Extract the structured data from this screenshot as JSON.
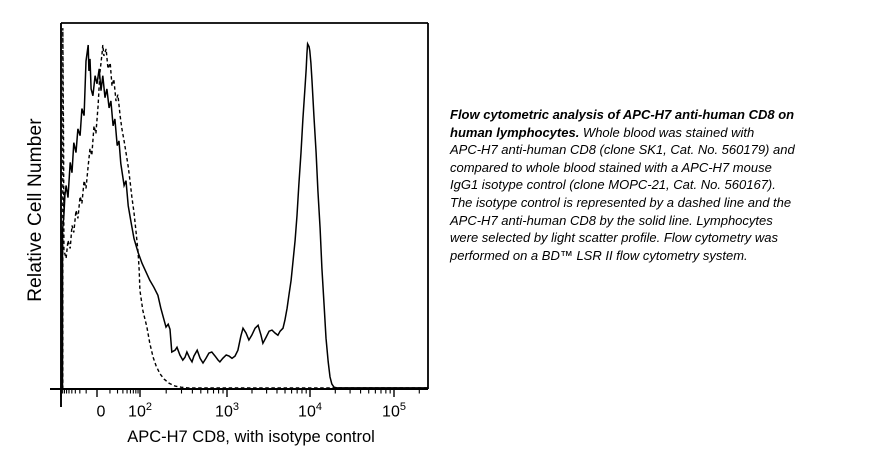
{
  "colors": {
    "line": "#000000",
    "background": "#ffffff"
  },
  "chart_data": {
    "type": "line",
    "subtype": "flow-cytometry-histogram-overlay",
    "title": "",
    "xlabel": "APC-H7 CD8, with isotype control",
    "ylabel": "Relative Cell Number",
    "x_scale": "biexponential",
    "grid": false,
    "legend": "none (line styles described in caption)",
    "x_axis": {
      "label": "APC-H7 CD8, with isotype control",
      "tick_labels": [
        {
          "base": "0",
          "exp": "",
          "fx": 0.109
        },
        {
          "base": "10",
          "exp": "2",
          "fx": 0.215
        },
        {
          "base": "10",
          "exp": "3",
          "fx": 0.452
        },
        {
          "base": "10",
          "exp": "4",
          "fx": 0.678
        },
        {
          "base": "10",
          "exp": "5",
          "fx": 0.907
        }
      ]
    },
    "y_axis": {
      "label": "Relative Cell Number",
      "tick_labels": []
    },
    "series": [
      {
        "name": "APC-H7 anti-human CD8 (clone SK1)",
        "style": "solid",
        "points": [
          [
            0.004,
            0
          ],
          [
            0.004,
            43.3
          ],
          [
            0.008,
            47.4
          ],
          [
            0.011,
            53.4
          ],
          [
            0.008,
            50.7
          ],
          [
            0.014,
            55.6
          ],
          [
            0.019,
            52.3
          ],
          [
            0.025,
            61.9
          ],
          [
            0.03,
            59.1
          ],
          [
            0.035,
            67.3
          ],
          [
            0.041,
            64.6
          ],
          [
            0.046,
            71.1
          ],
          [
            0.052,
            69.2
          ],
          [
            0.057,
            76.6
          ],
          [
            0.063,
            74.7
          ],
          [
            0.068,
            89.6
          ],
          [
            0.074,
            94.0
          ],
          [
            0.076,
            86.9
          ],
          [
            0.079,
            90.2
          ],
          [
            0.082,
            82.0
          ],
          [
            0.087,
            80.1
          ],
          [
            0.093,
            85.6
          ],
          [
            0.098,
            83.4
          ],
          [
            0.104,
            87.5
          ],
          [
            0.109,
            81.5
          ],
          [
            0.114,
            85.6
          ],
          [
            0.12,
            79.6
          ],
          [
            0.125,
            82.0
          ],
          [
            0.131,
            76.8
          ],
          [
            0.136,
            78.7
          ],
          [
            0.142,
            71.9
          ],
          [
            0.147,
            73.8
          ],
          [
            0.153,
            66.5
          ],
          [
            0.158,
            67.8
          ],
          [
            0.163,
            61.6
          ],
          [
            0.172,
            55.6
          ],
          [
            0.177,
            56.9
          ],
          [
            0.183,
            50.1
          ],
          [
            0.191,
            45.5
          ],
          [
            0.199,
            41.1
          ],
          [
            0.21,
            37.3
          ],
          [
            0.221,
            34.3
          ],
          [
            0.232,
            31.9
          ],
          [
            0.242,
            29.7
          ],
          [
            0.253,
            27.8
          ],
          [
            0.264,
            25.6
          ],
          [
            0.272,
            22.1
          ],
          [
            0.281,
            18.8
          ],
          [
            0.286,
            16.9
          ],
          [
            0.292,
            17.7
          ],
          [
            0.297,
            16.3
          ],
          [
            0.302,
            10.1
          ],
          [
            0.311,
            10.6
          ],
          [
            0.316,
            11.4
          ],
          [
            0.324,
            9.3
          ],
          [
            0.332,
            7.9
          ],
          [
            0.338,
            8.7
          ],
          [
            0.343,
            10.1
          ],
          [
            0.351,
            8.4
          ],
          [
            0.357,
            7.4
          ],
          [
            0.362,
            9.0
          ],
          [
            0.371,
            10.6
          ],
          [
            0.379,
            8.4
          ],
          [
            0.387,
            7.1
          ],
          [
            0.395,
            8.4
          ],
          [
            0.403,
            9.8
          ],
          [
            0.411,
            10.1
          ],
          [
            0.42,
            9.0
          ],
          [
            0.428,
            7.9
          ],
          [
            0.433,
            7.4
          ],
          [
            0.441,
            8.4
          ],
          [
            0.45,
            9.3
          ],
          [
            0.458,
            9.0
          ],
          [
            0.466,
            8.4
          ],
          [
            0.474,
            9.0
          ],
          [
            0.482,
            10.6
          ],
          [
            0.49,
            14.4
          ],
          [
            0.496,
            16.6
          ],
          [
            0.504,
            15.3
          ],
          [
            0.512,
            13.4
          ],
          [
            0.52,
            14.7
          ],
          [
            0.529,
            16.6
          ],
          [
            0.537,
            17.4
          ],
          [
            0.545,
            14.7
          ],
          [
            0.55,
            12.5
          ],
          [
            0.559,
            14.2
          ],
          [
            0.567,
            15.8
          ],
          [
            0.575,
            16.1
          ],
          [
            0.583,
            15.3
          ],
          [
            0.591,
            14.7
          ],
          [
            0.597,
            15.8
          ],
          [
            0.605,
            16.6
          ],
          [
            0.61,
            18.8
          ],
          [
            0.616,
            22.1
          ],
          [
            0.621,
            25.6
          ],
          [
            0.627,
            29.7
          ],
          [
            0.632,
            34.6
          ],
          [
            0.638,
            40.6
          ],
          [
            0.643,
            47.4
          ],
          [
            0.648,
            55.6
          ],
          [
            0.654,
            64.6
          ],
          [
            0.659,
            73.8
          ],
          [
            0.665,
            82.8
          ],
          [
            0.668,
            87.5
          ],
          [
            0.67,
            91.5
          ],
          [
            0.672,
            94.3
          ],
          [
            0.676,
            93.5
          ],
          [
            0.678,
            92.4
          ],
          [
            0.681,
            89.1
          ],
          [
            0.684,
            84.2
          ],
          [
            0.689,
            74.7
          ],
          [
            0.695,
            64.6
          ],
          [
            0.7,
            54.2
          ],
          [
            0.706,
            43.9
          ],
          [
            0.711,
            33.0
          ],
          [
            0.717,
            22.9
          ],
          [
            0.722,
            13.9
          ],
          [
            0.728,
            7.4
          ],
          [
            0.733,
            3.3
          ],
          [
            0.738,
            1.4
          ],
          [
            0.744,
            0.5
          ],
          [
            0.752,
            0.3
          ],
          [
            1.0,
            0.3
          ]
        ]
      },
      {
        "name": "APC-H7 mouse IgG1 isotype control (clone MOPC-21)",
        "style": "dashed",
        "points": [
          [
            0.005,
            0
          ],
          [
            0.005,
            98.6
          ],
          [
            0.007,
            65.1
          ],
          [
            0.008,
            37.9
          ],
          [
            0.014,
            35.7
          ],
          [
            0.019,
            40.6
          ],
          [
            0.025,
            38.4
          ],
          [
            0.03,
            44.7
          ],
          [
            0.035,
            42.8
          ],
          [
            0.041,
            48.8
          ],
          [
            0.046,
            46.6
          ],
          [
            0.052,
            52.6
          ],
          [
            0.057,
            50.7
          ],
          [
            0.063,
            56.9
          ],
          [
            0.068,
            54.8
          ],
          [
            0.074,
            61.0
          ],
          [
            0.079,
            65.7
          ],
          [
            0.084,
            63.8
          ],
          [
            0.09,
            71.9
          ],
          [
            0.095,
            69.8
          ],
          [
            0.101,
            77.4
          ],
          [
            0.106,
            86.4
          ],
          [
            0.112,
            91.8
          ],
          [
            0.114,
            94.0
          ],
          [
            0.117,
            91.0
          ],
          [
            0.123,
            92.9
          ],
          [
            0.128,
            87.5
          ],
          [
            0.134,
            89.1
          ],
          [
            0.139,
            82.8
          ],
          [
            0.144,
            84.7
          ],
          [
            0.15,
            78.7
          ],
          [
            0.155,
            80.4
          ],
          [
            0.161,
            74.7
          ],
          [
            0.166,
            71.1
          ],
          [
            0.172,
            67.8
          ],
          [
            0.177,
            64.6
          ],
          [
            0.183,
            60.8
          ],
          [
            0.188,
            56.9
          ],
          [
            0.193,
            52.6
          ],
          [
            0.199,
            48.2
          ],
          [
            0.204,
            43.3
          ],
          [
            0.21,
            37.3
          ],
          [
            0.213,
            32.4
          ],
          [
            0.215,
            27.0
          ],
          [
            0.223,
            21.5
          ],
          [
            0.234,
            16.9
          ],
          [
            0.242,
            12.5
          ],
          [
            0.251,
            8.7
          ],
          [
            0.259,
            6.3
          ],
          [
            0.27,
            4.1
          ],
          [
            0.281,
            2.7
          ],
          [
            0.294,
            1.6
          ],
          [
            0.311,
            0.8
          ],
          [
            0.327,
            0.5
          ],
          [
            0.346,
            0.3
          ],
          [
            1.0,
            0.3
          ]
        ]
      }
    ]
  },
  "caption": {
    "lines": [
      {
        "bold": "Flow cytometric analysis of APC-H7 anti-human CD8 on",
        "text": ""
      },
      {
        "bold": "human lymphocytes.",
        "text": " Whole blood was stained with"
      },
      {
        "bold": "",
        "text": "APC-H7 anti-human CD8 (clone SK1, Cat. No. 560179) and"
      },
      {
        "bold": "",
        "text": "compared to whole blood stained with a APC-H7 mouse"
      },
      {
        "bold": "",
        "text": "IgG1 isotype control (clone MOPC-21, Cat. No. 560167)."
      },
      {
        "bold": "",
        "text": "The isotype control is represented by a dashed line and the"
      },
      {
        "bold": "",
        "text": "APC-H7 anti-human CD8 by the solid line. Lymphocytes"
      },
      {
        "bold": "",
        "text": "were selected by light scatter profile. Flow cytometry was"
      },
      {
        "bold": "",
        "text": "performed on a BD™ LSR II flow cytometry system."
      }
    ]
  }
}
